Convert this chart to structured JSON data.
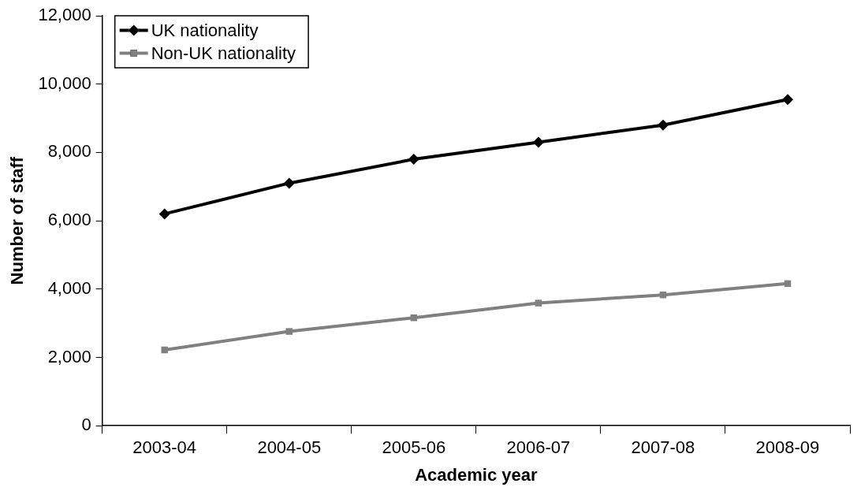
{
  "chart_data": {
    "type": "line",
    "xlabel": "Academic year",
    "ylabel": "Number of staff",
    "categories": [
      "2003-04",
      "2004-05",
      "2005-06",
      "2006-07",
      "2007-08",
      "2008-09"
    ],
    "series": [
      {
        "name": "UK nationality",
        "color": "#000000",
        "marker": "diamond",
        "values": [
          6200,
          7100,
          7800,
          8300,
          8800,
          9550
        ]
      },
      {
        "name": "Non-UK nationality",
        "color": "#808080",
        "marker": "square",
        "values": [
          2220,
          2760,
          3160,
          3590,
          3830,
          4160
        ]
      }
    ],
    "ylim": [
      0,
      12000
    ],
    "yticks": [
      0,
      {
        "value": 2000,
        "label": "2,000"
      },
      {
        "value": 4000,
        "label": "4,000"
      },
      {
        "value": 6000,
        "label": "6,000"
      },
      {
        "value": 8000,
        "label": "8,000"
      },
      {
        "value": 10000,
        "label": "10,000"
      },
      {
        "value": 12000,
        "label": "12,000"
      }
    ],
    "grid": false,
    "legend": "top left",
    "line_style": "solid"
  }
}
